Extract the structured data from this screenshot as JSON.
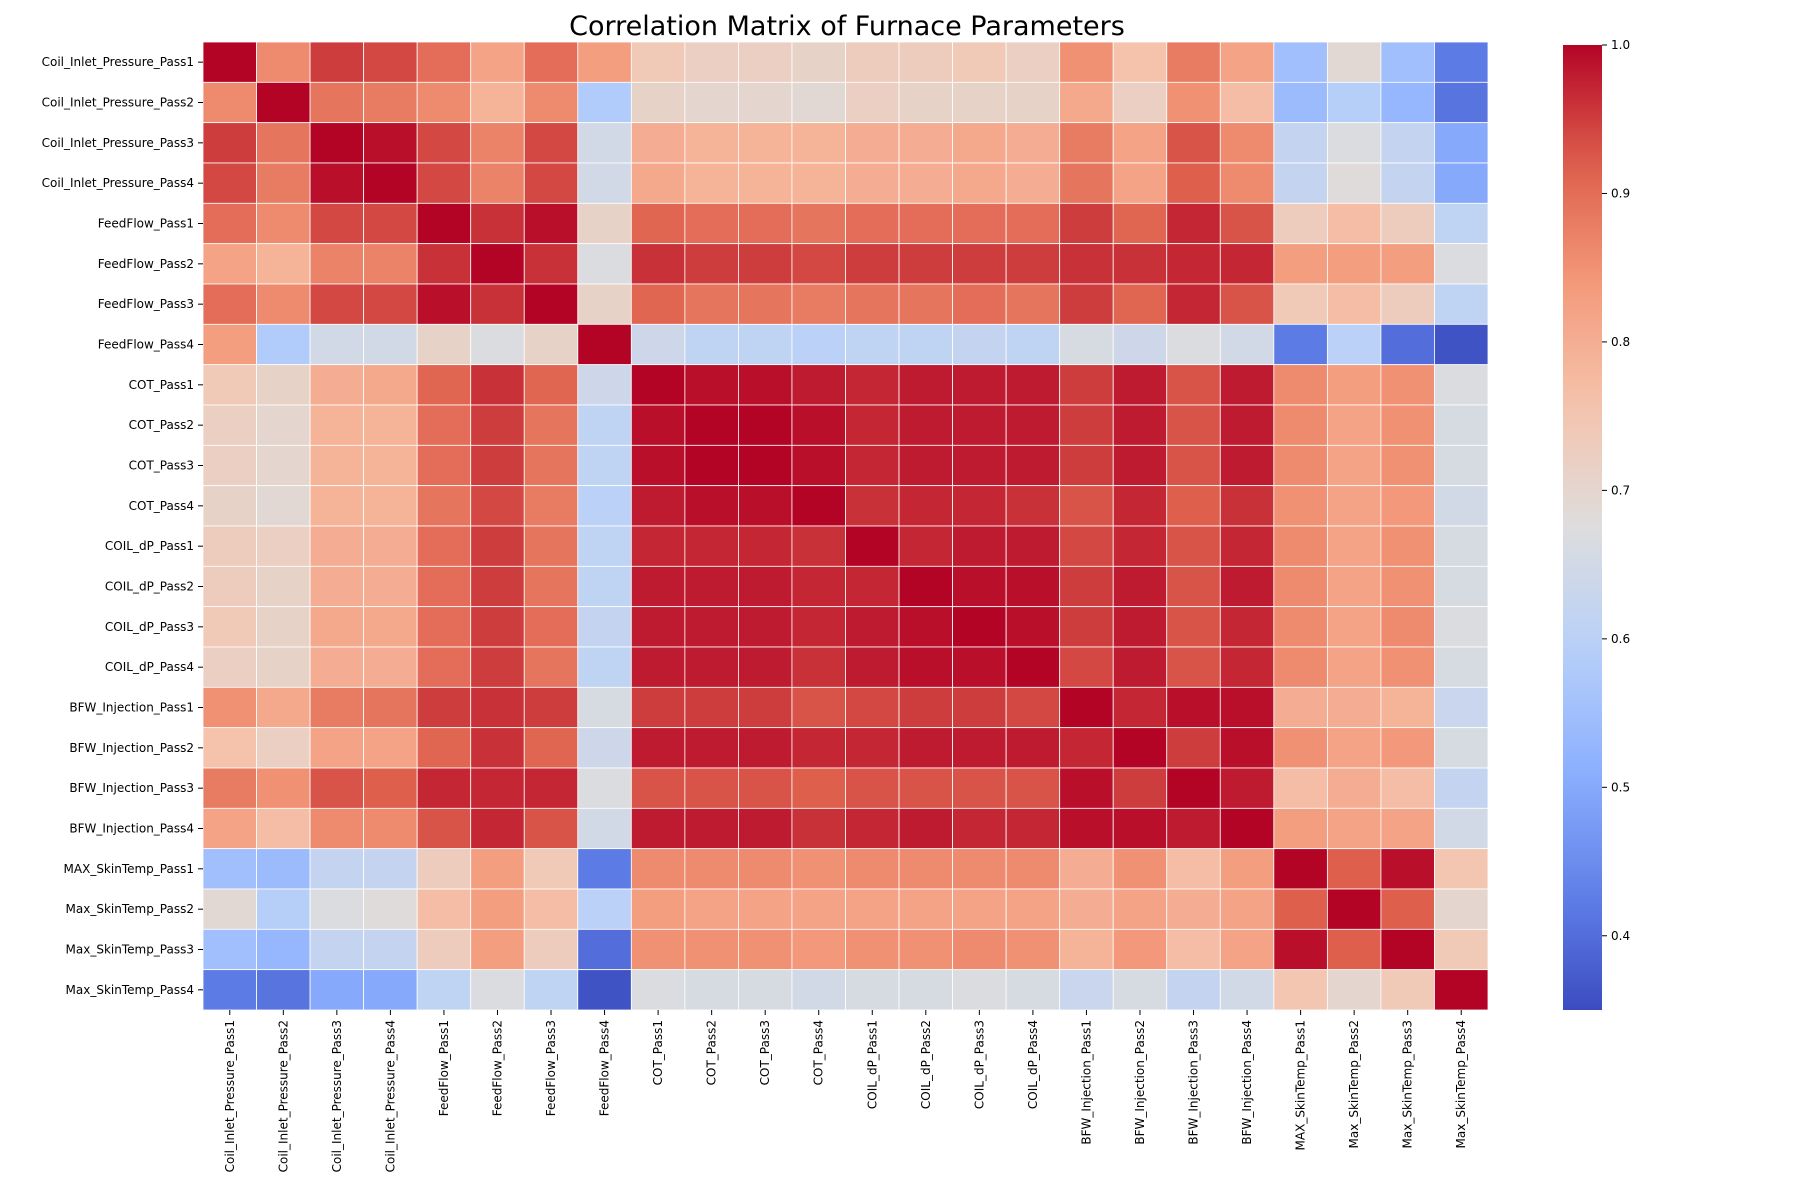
{
  "chart_data": {
    "type": "heatmap",
    "title": "Correlation Matrix of Furnace Parameters",
    "xlabel": "",
    "ylabel": "",
    "colormap": "coolwarm",
    "color_range": [
      0.35,
      1.0
    ],
    "colorbar_ticks": [
      "0.4",
      "0.5",
      "0.6",
      "0.7",
      "0.8",
      "0.9",
      "1.0"
    ],
    "grid": true,
    "legend": "colorbar-right",
    "variables": [
      "Coil_Inlet_Pressure_Pass1",
      "Coil_Inlet_Pressure_Pass2",
      "Coil_Inlet_Pressure_Pass3",
      "Coil_Inlet_Pressure_Pass4",
      "FeedFlow_Pass1",
      "FeedFlow_Pass2",
      "FeedFlow_Pass3",
      "FeedFlow_Pass4",
      "COT_Pass1",
      "COT_Pass2",
      "COT_Pass3",
      "COT_Pass4",
      "COIL_dP_Pass1",
      "COIL_dP_Pass2",
      "COIL_dP_Pass3",
      "COIL_dP_Pass4",
      "BFW_Injection_Pass1",
      "BFW_Injection_Pass2",
      "BFW_Injection_Pass3",
      "BFW_Injection_Pass4",
      "MAX_SkinTemp_Pass1",
      "Max_SkinTemp_Pass2",
      "Max_SkinTemp_Pass3",
      "Max_SkinTemp_Pass4"
    ],
    "matrix": [
      [
        1.0,
        0.86,
        0.95,
        0.94,
        0.9,
        0.82,
        0.9,
        0.83,
        0.74,
        0.72,
        0.72,
        0.71,
        0.73,
        0.73,
        0.74,
        0.72,
        0.85,
        0.76,
        0.88,
        0.82,
        0.55,
        0.69,
        0.55,
        0.42
      ],
      [
        0.86,
        1.0,
        0.89,
        0.88,
        0.86,
        0.79,
        0.86,
        0.58,
        0.71,
        0.7,
        0.7,
        0.69,
        0.72,
        0.71,
        0.71,
        0.71,
        0.81,
        0.72,
        0.85,
        0.77,
        0.54,
        0.59,
        0.53,
        0.41
      ],
      [
        0.95,
        0.89,
        1.0,
        0.99,
        0.94,
        0.87,
        0.94,
        0.65,
        0.8,
        0.79,
        0.79,
        0.79,
        0.8,
        0.8,
        0.81,
        0.8,
        0.88,
        0.82,
        0.93,
        0.86,
        0.62,
        0.67,
        0.62,
        0.5
      ],
      [
        0.94,
        0.88,
        0.99,
        1.0,
        0.94,
        0.87,
        0.94,
        0.65,
        0.81,
        0.79,
        0.79,
        0.79,
        0.8,
        0.8,
        0.81,
        0.8,
        0.89,
        0.82,
        0.92,
        0.86,
        0.62,
        0.68,
        0.62,
        0.5
      ],
      [
        0.9,
        0.86,
        0.94,
        0.94,
        1.0,
        0.96,
        0.99,
        0.71,
        0.91,
        0.9,
        0.9,
        0.89,
        0.9,
        0.9,
        0.9,
        0.9,
        0.95,
        0.91,
        0.97,
        0.93,
        0.73,
        0.77,
        0.73,
        0.61
      ],
      [
        0.82,
        0.79,
        0.87,
        0.87,
        0.96,
        1.0,
        0.96,
        0.67,
        0.96,
        0.95,
        0.95,
        0.94,
        0.95,
        0.95,
        0.95,
        0.95,
        0.96,
        0.96,
        0.97,
        0.97,
        0.83,
        0.83,
        0.83,
        0.67
      ],
      [
        0.9,
        0.86,
        0.94,
        0.94,
        0.99,
        0.96,
        1.0,
        0.71,
        0.91,
        0.89,
        0.89,
        0.88,
        0.89,
        0.89,
        0.9,
        0.89,
        0.95,
        0.91,
        0.97,
        0.93,
        0.74,
        0.77,
        0.73,
        0.61
      ],
      [
        0.83,
        0.58,
        0.65,
        0.65,
        0.71,
        0.67,
        0.71,
        1.0,
        0.64,
        0.61,
        0.61,
        0.6,
        0.61,
        0.61,
        0.62,
        0.61,
        0.66,
        0.64,
        0.67,
        0.65,
        0.42,
        0.6,
        0.4,
        0.36
      ],
      [
        0.74,
        0.71,
        0.8,
        0.81,
        0.91,
        0.96,
        0.91,
        0.64,
        1.0,
        0.99,
        0.99,
        0.98,
        0.97,
        0.98,
        0.98,
        0.98,
        0.95,
        0.98,
        0.93,
        0.98,
        0.86,
        0.83,
        0.85,
        0.67
      ],
      [
        0.72,
        0.7,
        0.79,
        0.79,
        0.9,
        0.95,
        0.89,
        0.61,
        0.99,
        1.0,
        1.0,
        0.99,
        0.97,
        0.98,
        0.98,
        0.98,
        0.95,
        0.98,
        0.93,
        0.98,
        0.86,
        0.82,
        0.85,
        0.66
      ],
      [
        0.72,
        0.7,
        0.79,
        0.79,
        0.9,
        0.95,
        0.89,
        0.61,
        0.99,
        1.0,
        1.0,
        0.99,
        0.97,
        0.98,
        0.98,
        0.98,
        0.95,
        0.98,
        0.93,
        0.98,
        0.86,
        0.82,
        0.85,
        0.66
      ],
      [
        0.71,
        0.69,
        0.79,
        0.79,
        0.89,
        0.94,
        0.88,
        0.6,
        0.98,
        0.99,
        0.99,
        1.0,
        0.96,
        0.97,
        0.97,
        0.96,
        0.93,
        0.97,
        0.92,
        0.96,
        0.85,
        0.82,
        0.84,
        0.65
      ],
      [
        0.73,
        0.72,
        0.8,
        0.8,
        0.9,
        0.95,
        0.89,
        0.61,
        0.97,
        0.97,
        0.97,
        0.96,
        1.0,
        0.97,
        0.98,
        0.98,
        0.94,
        0.97,
        0.93,
        0.97,
        0.86,
        0.82,
        0.85,
        0.66
      ],
      [
        0.73,
        0.71,
        0.8,
        0.8,
        0.9,
        0.95,
        0.89,
        0.61,
        0.98,
        0.98,
        0.98,
        0.97,
        0.97,
        1.0,
        0.99,
        0.99,
        0.95,
        0.98,
        0.93,
        0.98,
        0.86,
        0.82,
        0.85,
        0.66
      ],
      [
        0.74,
        0.71,
        0.81,
        0.81,
        0.9,
        0.95,
        0.9,
        0.62,
        0.98,
        0.98,
        0.98,
        0.97,
        0.98,
        0.99,
        1.0,
        0.99,
        0.95,
        0.98,
        0.93,
        0.97,
        0.86,
        0.82,
        0.86,
        0.67
      ],
      [
        0.72,
        0.71,
        0.8,
        0.8,
        0.9,
        0.95,
        0.89,
        0.61,
        0.98,
        0.98,
        0.98,
        0.96,
        0.98,
        0.99,
        0.99,
        1.0,
        0.94,
        0.98,
        0.93,
        0.97,
        0.86,
        0.82,
        0.85,
        0.66
      ],
      [
        0.85,
        0.81,
        0.88,
        0.89,
        0.95,
        0.96,
        0.95,
        0.66,
        0.95,
        0.95,
        0.95,
        0.93,
        0.94,
        0.95,
        0.95,
        0.94,
        1.0,
        0.97,
        0.99,
        0.99,
        0.8,
        0.8,
        0.79,
        0.63
      ],
      [
        0.76,
        0.72,
        0.82,
        0.82,
        0.91,
        0.96,
        0.91,
        0.64,
        0.98,
        0.98,
        0.98,
        0.97,
        0.97,
        0.98,
        0.98,
        0.98,
        0.97,
        1.0,
        0.95,
        0.99,
        0.85,
        0.82,
        0.84,
        0.66
      ],
      [
        0.88,
        0.85,
        0.93,
        0.92,
        0.97,
        0.97,
        0.97,
        0.67,
        0.93,
        0.93,
        0.93,
        0.92,
        0.93,
        0.93,
        0.93,
        0.93,
        0.99,
        0.95,
        1.0,
        0.98,
        0.77,
        0.8,
        0.77,
        0.62
      ],
      [
        0.82,
        0.77,
        0.86,
        0.86,
        0.93,
        0.97,
        0.93,
        0.65,
        0.98,
        0.98,
        0.98,
        0.96,
        0.97,
        0.98,
        0.97,
        0.97,
        0.99,
        0.99,
        0.98,
        1.0,
        0.83,
        0.82,
        0.82,
        0.65
      ],
      [
        0.55,
        0.54,
        0.62,
        0.62,
        0.73,
        0.83,
        0.74,
        0.42,
        0.86,
        0.86,
        0.86,
        0.85,
        0.86,
        0.86,
        0.86,
        0.86,
        0.8,
        0.85,
        0.77,
        0.83,
        1.0,
        0.92,
        0.99,
        0.75
      ],
      [
        0.69,
        0.59,
        0.67,
        0.68,
        0.77,
        0.83,
        0.77,
        0.6,
        0.83,
        0.82,
        0.82,
        0.82,
        0.82,
        0.82,
        0.82,
        0.82,
        0.8,
        0.82,
        0.8,
        0.82,
        0.92,
        1.0,
        0.92,
        0.7
      ],
      [
        0.55,
        0.53,
        0.62,
        0.62,
        0.73,
        0.83,
        0.73,
        0.4,
        0.85,
        0.85,
        0.85,
        0.84,
        0.85,
        0.85,
        0.86,
        0.85,
        0.79,
        0.84,
        0.77,
        0.82,
        0.99,
        0.92,
        1.0,
        0.74
      ],
      [
        0.42,
        0.41,
        0.5,
        0.5,
        0.61,
        0.67,
        0.61,
        0.36,
        0.67,
        0.66,
        0.66,
        0.65,
        0.66,
        0.66,
        0.67,
        0.66,
        0.63,
        0.66,
        0.62,
        0.65,
        0.75,
        0.7,
        0.74,
        1.0
      ]
    ]
  }
}
